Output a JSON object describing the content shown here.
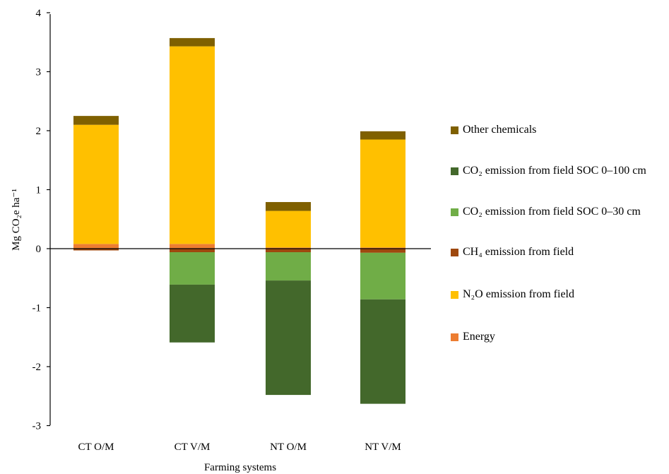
{
  "chart_data": {
    "type": "bar",
    "stacked": true,
    "xlabel": "Farming systems",
    "ylabel": "Mg CO₂e ha⁻¹",
    "ylim": [
      -3,
      4
    ],
    "yticks": [
      "4",
      "3",
      "2",
      "1",
      "0",
      "-1",
      "-2",
      "-3"
    ],
    "ytick_values": [
      4,
      3,
      2,
      1,
      0,
      -1,
      -2,
      -3
    ],
    "categories": [
      "CT O/M",
      "CT V/M",
      "NT O/M",
      "NT V/M"
    ],
    "series": [
      {
        "name": "Energy",
        "color": "#ed7d31",
        "values": [
          0.08,
          0.08,
          0.02,
          0.02
        ]
      },
      {
        "name": "N₂O emission from field",
        "color": "#ffc000",
        "values": [
          2.02,
          3.35,
          0.62,
          1.83
        ]
      },
      {
        "name": "CH₄ emission from field",
        "color": "#9e480e",
        "values": [
          -0.03,
          -0.06,
          -0.06,
          -0.07
        ]
      },
      {
        "name": "CO₂ emission from field SOC 0–30 cm",
        "color": "#70ad47",
        "values": [
          0,
          -0.55,
          -0.48,
          -0.79
        ]
      },
      {
        "name": "CO₂ emission from field SOC 0–100 cm",
        "color": "#43682b",
        "values": [
          0,
          -0.98,
          -1.94,
          -1.77
        ]
      },
      {
        "name": "Other chemicals",
        "color": "#7f6000",
        "values": [
          0.15,
          0.14,
          0.15,
          0.14
        ]
      }
    ],
    "legend_order": [
      5,
      4,
      3,
      2,
      1,
      0
    ],
    "legend_position": "right",
    "grid": false
  }
}
